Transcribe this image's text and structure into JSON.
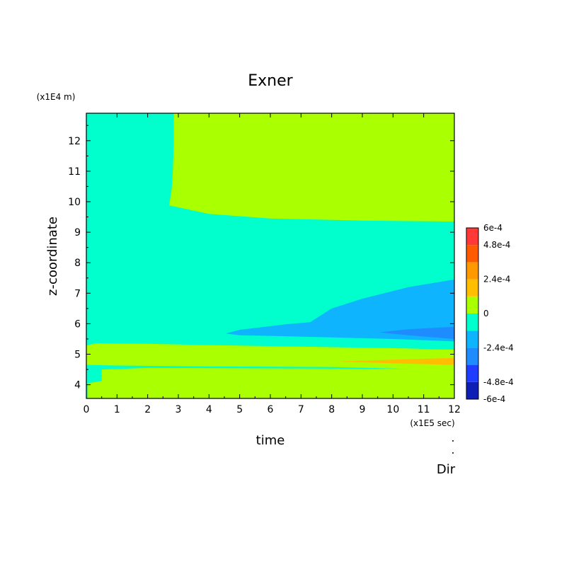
{
  "chart_data": {
    "type": "contour",
    "title": "Exner",
    "xlabel": "time",
    "ylabel": "z-coordinate",
    "x_unit_label": "(x1E5 sec)",
    "y_unit_label": "(x1E4 m)",
    "xlim": [
      0,
      12
    ],
    "ylim": [
      3.55,
      12.9
    ],
    "x_ticks": [
      0,
      1,
      2,
      3,
      4,
      5,
      6,
      7,
      8,
      9,
      10,
      11,
      12
    ],
    "y_ticks": [
      4,
      5,
      6,
      7,
      8,
      9,
      10,
      11,
      12
    ],
    "colorbar": {
      "levels": [
        -0.0006,
        -0.00048,
        -0.00036,
        -0.00024,
        -0.00012,
        0,
        0.00012,
        0.00024,
        0.00036,
        0.00048,
        0.0006
      ],
      "tick_labels": [
        {
          "value": 0.0006,
          "text": "6e-4"
        },
        {
          "value": 0.00048,
          "text": "4.8e-4"
        },
        {
          "value": 0.00024,
          "text": "2.4e-4"
        },
        {
          "value": 0,
          "text": "0"
        },
        {
          "value": -0.00024,
          "text": "-2.4e-4"
        },
        {
          "value": -0.00048,
          "text": "-4.8e-4"
        },
        {
          "value": -0.0006,
          "text": "-6e-4"
        }
      ],
      "colors": [
        "#0d1fb4",
        "#1f3cff",
        "#1e8cff",
        "#0fb4ff",
        "#00ffcc",
        "#aaff00",
        "#ffbf00",
        "#ff9900",
        "#ff5a00",
        "#ff3838"
      ]
    },
    "regions": [
      {
        "name": "background",
        "level_index": 4,
        "polygons": [
          [
            [
              0,
              3.55
            ],
            [
              12,
              3.55
            ],
            [
              12,
              12.9
            ],
            [
              0,
              12.9
            ]
          ]
        ]
      },
      {
        "name": "upper-positive",
        "level_index": 5,
        "polygons": [
          [
            [
              2.85,
              12.9
            ],
            [
              12,
              12.9
            ],
            [
              12,
              9.35
            ],
            [
              9,
              9.38
            ],
            [
              6,
              9.45
            ],
            [
              4,
              9.6
            ],
            [
              3.3,
              9.75
            ],
            [
              2.7,
              9.88
            ],
            [
              2.78,
              10.4
            ],
            [
              2.82,
              11
            ],
            [
              2.85,
              12
            ]
          ]
        ]
      },
      {
        "name": "lower-positive-band",
        "level_index": 5,
        "polygons": [
          [
            [
              0,
              5.28
            ],
            [
              0.3,
              5.36
            ],
            [
              2,
              5.34
            ],
            [
              4,
              5.3
            ],
            [
              7,
              5.25
            ],
            [
              10,
              5.2
            ],
            [
              12,
              5.15
            ],
            [
              12,
              3.55
            ],
            [
              0.05,
              3.55
            ],
            [
              0.05,
              4.05
            ],
            [
              0.5,
              4.12
            ],
            [
              0.5,
              4.5
            ],
            [
              2,
              4.55
            ],
            [
              10.5,
              4.52
            ],
            [
              8,
              4.58
            ],
            [
              4,
              4.6
            ],
            [
              1,
              4.63
            ],
            [
              0,
              4.65
            ]
          ]
        ]
      },
      {
        "name": "negative-lobe",
        "level_index": 3,
        "polygons": [
          [
            [
              4.55,
              5.68
            ],
            [
              5,
              5.8
            ],
            [
              6.5,
              5.98
            ],
            [
              7.3,
              6.05
            ],
            [
              8,
              6.5
            ],
            [
              9,
              6.82
            ],
            [
              10.5,
              7.2
            ],
            [
              12,
              7.45
            ],
            [
              12,
              5.42
            ],
            [
              10,
              5.5
            ],
            [
              8,
              5.55
            ],
            [
              6,
              5.6
            ],
            [
              5,
              5.62
            ]
          ]
        ]
      },
      {
        "name": "negative-core",
        "level_index": 2,
        "polygons": [
          [
            [
              9.55,
              5.72
            ],
            [
              10.5,
              5.82
            ],
            [
              12,
              5.9
            ],
            [
              12,
              5.5
            ],
            [
              10.5,
              5.62
            ]
          ]
        ]
      },
      {
        "name": "positive-streak",
        "level_index": 6,
        "polygons": [
          [
            [
              8.2,
              4.76
            ],
            [
              10,
              4.82
            ],
            [
              12,
              4.88
            ],
            [
              12,
              4.65
            ],
            [
              10,
              4.7
            ]
          ]
        ]
      }
    ]
  },
  "annotations": {
    "dir_label": "Dir"
  }
}
